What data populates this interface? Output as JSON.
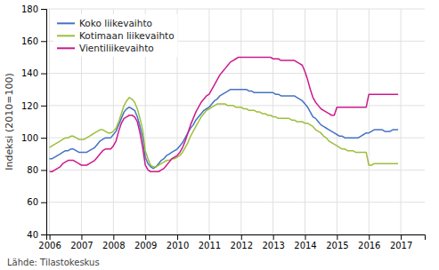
{
  "chart_data": {
    "type": "line",
    "ylabel": "Indeksi (2010=100)",
    "annotations": [
      "Lähde: Tilastokeskus"
    ],
    "xlim": [
      2005.9,
      2017.75
    ],
    "xticks": [
      2006,
      2007,
      2008,
      2009,
      2010,
      2011,
      2012,
      2013,
      2014,
      2015,
      2016,
      2017
    ],
    "ylim": [
      40,
      180
    ],
    "yticks": [
      40,
      60,
      80,
      100,
      120,
      140,
      160,
      180
    ],
    "grid": true,
    "legend": "upper left",
    "x": [
      2006,
      2006.08333,
      2006.16666,
      2006.24999,
      2006.33332,
      2006.41665,
      2006.49998,
      2006.58331,
      2006.66664,
      2006.74997,
      2006.8333,
      2006.91663,
      2006.99996,
      2007.08329,
      2007.16662,
      2007.24995,
      2007.33328,
      2007.41661,
      2007.49994,
      2007.58327,
      2007.6666,
      2007.74993,
      2007.83326,
      2007.91659,
      2007.99992,
      2008.08325,
      2008.16658,
      2008.24991,
      2008.33324,
      2008.41657,
      2008.4999,
      2008.58323,
      2008.66656,
      2008.74989,
      2008.83322,
      2008.91655,
      2008.99988,
      2009.08321,
      2009.16654,
      2009.24987,
      2009.3332,
      2009.41653,
      2009.49986,
      2009.58319,
      2009.66652,
      2009.74985,
      2009.83318,
      2009.91651,
      2009.99984,
      2010.08317,
      2010.1665,
      2010.24983,
      2010.33316,
      2010.41649,
      2010.49982,
      2010.58315,
      2010.66648,
      2010.74981,
      2010.83314,
      2010.91647,
      2010.9998,
      2011.08313,
      2011.16646,
      2011.24979,
      2011.33312,
      2011.41645,
      2011.49978,
      2011.58311,
      2011.66644,
      2011.74977,
      2011.8331,
      2011.91643,
      2011.99976,
      2012.08309,
      2012.16642,
      2012.24975,
      2012.33308,
      2012.41641,
      2012.49974,
      2012.58307,
      2012.6664,
      2012.74973,
      2012.83306,
      2012.91639,
      2012.99972,
      2013.08305,
      2013.16638,
      2013.24971,
      2013.33304,
      2013.41637,
      2013.4997,
      2013.58303,
      2013.66636,
      2013.74969,
      2013.83302,
      2013.91635,
      2013.99968,
      2014.08301,
      2014.16634,
      2014.24967,
      2014.333,
      2014.41633,
      2014.49966,
      2014.58299,
      2014.66632,
      2014.74965,
      2014.83298,
      2014.91631,
      2014.99964,
      2015.08297,
      2015.1663,
      2015.24963,
      2015.33296,
      2015.41629,
      2015.49962,
      2015.58295,
      2015.66628,
      2015.74961,
      2015.83294,
      2015.91627,
      2015.9996,
      2016.08293,
      2016.16626,
      2016.24959,
      2016.33292,
      2016.41625,
      2016.49958,
      2016.58291,
      2016.66624,
      2016.74957,
      2016.8329,
      2016.91623
    ],
    "series": [
      {
        "name": "Koko liikevaihto",
        "color": "#4472c4",
        "values": [
          87,
          87,
          88,
          89,
          90,
          91,
          92,
          92,
          93,
          93,
          92,
          91,
          91,
          91,
          91,
          92,
          93,
          94,
          96,
          98,
          99,
          100,
          100,
          100,
          102,
          104,
          108,
          112,
          116,
          118,
          119,
          118,
          117,
          113,
          107,
          100,
          88,
          84,
          82,
          81,
          82,
          84,
          86,
          87,
          89,
          90,
          91,
          92,
          93,
          95,
          97,
          100,
          103,
          106,
          108,
          111,
          113,
          115,
          117,
          118,
          119,
          121,
          123,
          124,
          126,
          127,
          128,
          129,
          130,
          130,
          130,
          130,
          130,
          130,
          130,
          129,
          129,
          128,
          128,
          128,
          128,
          128,
          128,
          128,
          128,
          127,
          127,
          126,
          126,
          126,
          126,
          126,
          126,
          125,
          124,
          123,
          121,
          119,
          116,
          113,
          112,
          110,
          108,
          107,
          106,
          105,
          104,
          103,
          102,
          101,
          101,
          100,
          100,
          100,
          100,
          100,
          100,
          101,
          102,
          103,
          103,
          104,
          105,
          105,
          105,
          105,
          104,
          104,
          104,
          105,
          105,
          105
        ]
      },
      {
        "name": "Kotimaan liikevaihto",
        "color": "#9bbf3c",
        "values": [
          94,
          95,
          96,
          97,
          98,
          99,
          100,
          100,
          101,
          101,
          100,
          99,
          99,
          99,
          100,
          101,
          102,
          103,
          104,
          105,
          105,
          104,
          103,
          103,
          104,
          106,
          110,
          115,
          120,
          123,
          125,
          124,
          122,
          118,
          112,
          105,
          92,
          87,
          83,
          82,
          82,
          83,
          84,
          85,
          86,
          86,
          87,
          87,
          88,
          89,
          91,
          94,
          97,
          101,
          104,
          107,
          110,
          113,
          115,
          117,
          118,
          119,
          120,
          121,
          121,
          121,
          121,
          120,
          120,
          120,
          119,
          119,
          119,
          118,
          118,
          117,
          117,
          117,
          116,
          116,
          115,
          115,
          114,
          114,
          113,
          113,
          112,
          112,
          112,
          112,
          112,
          111,
          111,
          110,
          110,
          110,
          109,
          109,
          108,
          107,
          105,
          104,
          103,
          101,
          100,
          98,
          97,
          96,
          95,
          94,
          93,
          93,
          92,
          92,
          92,
          91,
          91,
          91,
          91,
          91,
          83,
          83,
          84,
          84,
          84,
          84,
          84,
          84,
          84,
          84,
          84,
          84
        ]
      },
      {
        "name": "Vientiliikevaihto",
        "color": "#cc1a8c",
        "values": [
          79,
          79,
          80,
          81,
          82,
          84,
          85,
          86,
          86,
          86,
          85,
          84,
          83,
          83,
          83,
          84,
          85,
          86,
          88,
          90,
          92,
          93,
          93,
          93,
          95,
          98,
          104,
          109,
          112,
          113,
          114,
          114,
          113,
          110,
          103,
          94,
          83,
          80,
          79,
          79,
          79,
          79,
          80,
          81,
          83,
          85,
          87,
          88,
          89,
          91,
          94,
          98,
          103,
          108,
          112,
          116,
          119,
          122,
          124,
          126,
          127,
          130,
          133,
          136,
          139,
          141,
          143,
          145,
          147,
          148,
          149,
          150,
          150,
          150,
          150,
          150,
          150,
          150,
          150,
          150,
          150,
          150,
          150,
          150,
          149,
          149,
          149,
          148,
          148,
          148,
          148,
          148,
          148,
          147,
          146,
          145,
          141,
          136,
          130,
          125,
          122,
          120,
          118,
          117,
          116,
          115,
          114,
          114,
          119,
          119,
          119,
          119,
          119,
          119,
          119,
          119,
          119,
          119,
          119,
          119,
          127,
          127,
          127,
          127,
          127,
          127,
          127,
          127,
          127,
          127,
          127,
          127
        ]
      }
    ]
  }
}
